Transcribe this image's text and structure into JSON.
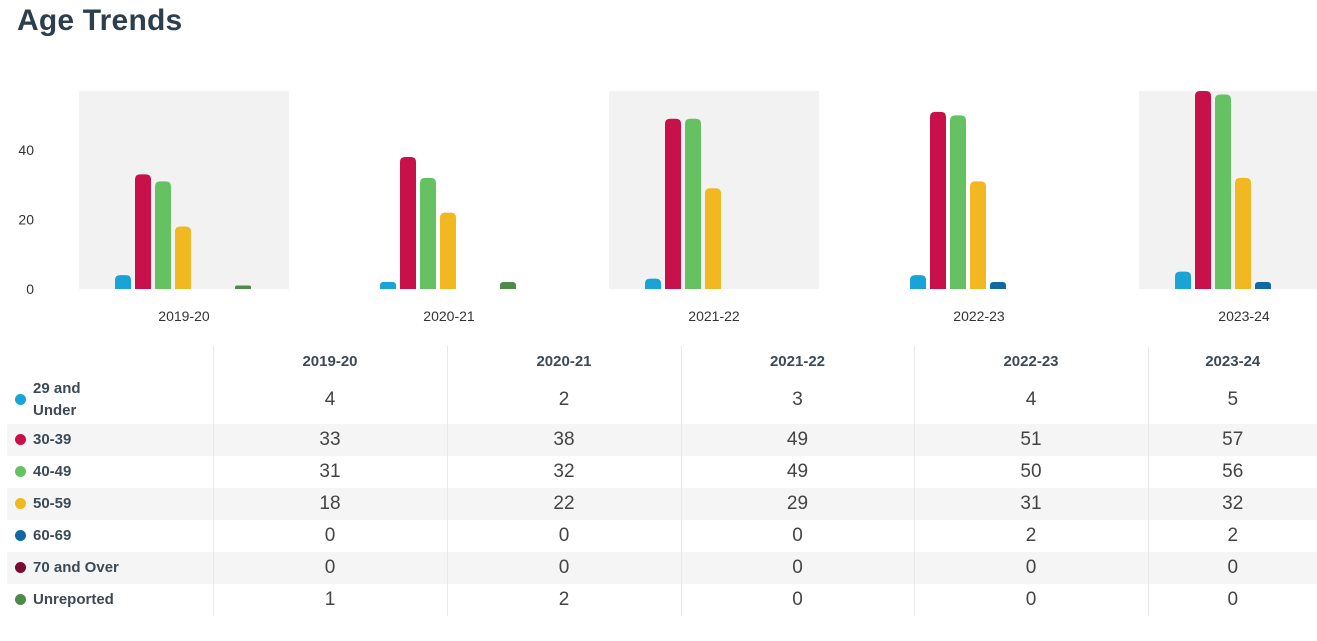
{
  "title": "Age Trends",
  "chart_data": {
    "type": "bar",
    "categories": [
      "2019-20",
      "2020-21",
      "2021-22",
      "2022-23",
      "2023-24"
    ],
    "series": [
      {
        "name": "29 and Under",
        "color": "#1aa3d6",
        "values": [
          4,
          2,
          3,
          4,
          5
        ]
      },
      {
        "name": "30-39",
        "color": "#c8104a",
        "values": [
          33,
          38,
          49,
          51,
          57
        ]
      },
      {
        "name": "40-49",
        "color": "#66c163",
        "values": [
          31,
          32,
          49,
          50,
          56
        ]
      },
      {
        "name": "50-59",
        "color": "#f2b822",
        "values": [
          18,
          22,
          29,
          31,
          32
        ]
      },
      {
        "name": "60-69",
        "color": "#0e6aa0",
        "values": [
          0,
          0,
          0,
          2,
          2
        ]
      },
      {
        "name": "70 and Over",
        "color": "#7a0b32",
        "values": [
          0,
          0,
          0,
          0,
          0
        ]
      },
      {
        "name": "Unreported",
        "color": "#4e8a4a",
        "values": [
          1,
          2,
          0,
          0,
          0
        ]
      }
    ],
    "yticks": [
      0,
      20,
      40
    ],
    "ylim": [
      0,
      57
    ],
    "grid": false,
    "legend": "table-left"
  }
}
